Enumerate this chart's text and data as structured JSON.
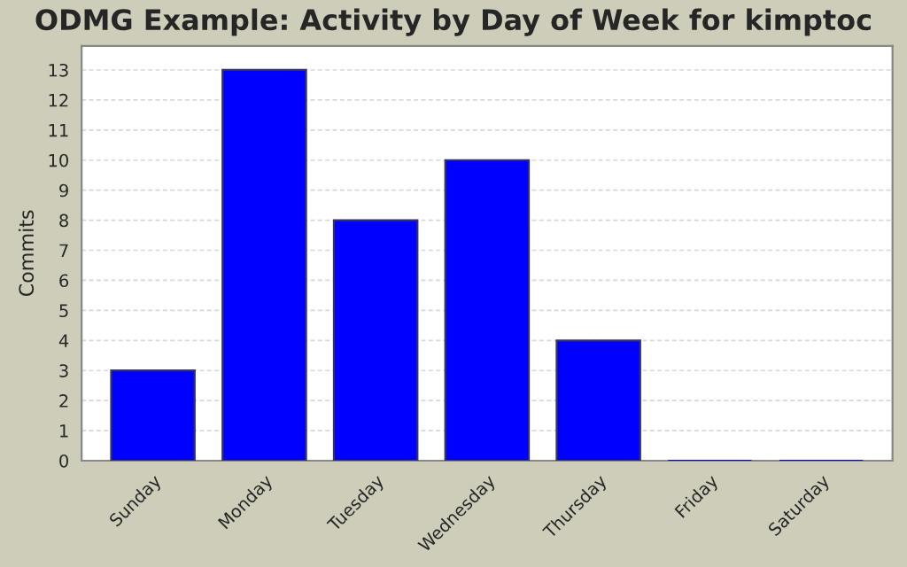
{
  "chart_data": {
    "type": "bar",
    "title": "ODMG Example: Activity by Day of Week for kimptoc",
    "ylabel": "Commits",
    "categories": [
      "Sunday",
      "Monday",
      "Tuesday",
      "Wednesday",
      "Thursday",
      "Friday",
      "Saturday"
    ],
    "values": [
      3,
      13,
      8,
      10,
      4,
      0,
      0
    ],
    "color": "#0000ff",
    "ylim": [
      0,
      13.8
    ],
    "yticks": [
      0,
      1,
      2,
      3,
      4,
      5,
      6,
      7,
      8,
      9,
      10,
      11,
      12,
      13
    ],
    "grid": "y"
  }
}
